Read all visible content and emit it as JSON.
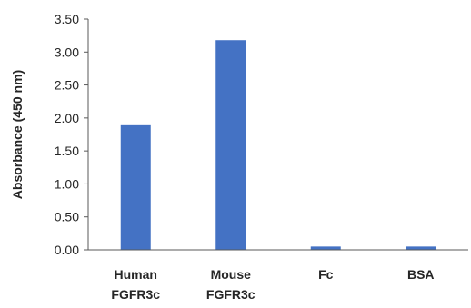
{
  "chart_data": {
    "type": "bar",
    "categories": [
      [
        "Human",
        "FGFR3c"
      ],
      [
        "Mouse",
        "FGFR3c"
      ],
      [
        "Fc"
      ],
      [
        "BSA"
      ]
    ],
    "values": [
      1.89,
      3.18,
      0.05,
      0.05
    ],
    "title": "",
    "xlabel": "",
    "ylabel": "Absorbance (450 nm)",
    "ylim": [
      0,
      3.5
    ],
    "yticks": [
      "0.00",
      "0.50",
      "1.00",
      "1.50",
      "2.00",
      "2.50",
      "3.00",
      "3.50"
    ],
    "grid": false,
    "legend": "none",
    "bar_color": "#4472c4",
    "axis_color": "#595959"
  }
}
